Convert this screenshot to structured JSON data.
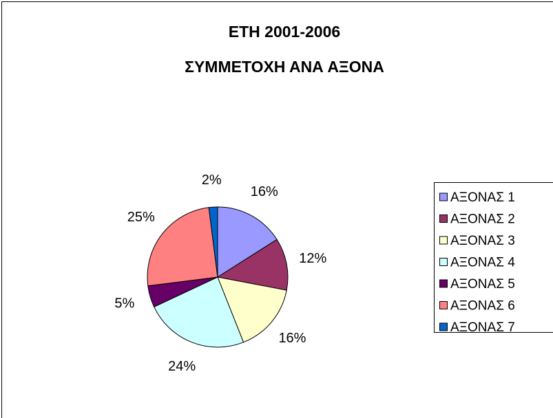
{
  "chart_data": {
    "type": "pie",
    "title": "ΕΤΗ 2001-2006",
    "subtitle": "ΣΥΜΜΕΤΟΧΗ ΑΝΑ ΑΞΟΝΑ",
    "categories": [
      "ΑΞΟΝΑΣ 1",
      "ΑΞΟΝΑΣ 2",
      "ΑΞΟΝΑΣ 3",
      "ΑΞΟΝΑΣ 4",
      "ΑΞΟΝΑΣ 5",
      "ΑΞΟΝΑΣ 6",
      "ΑΞΟΝΑΣ 7"
    ],
    "values": [
      16,
      12,
      16,
      24,
      5,
      25,
      2
    ],
    "value_labels": [
      "16%",
      "12%",
      "16%",
      "24%",
      "5%",
      "25%",
      "2%"
    ],
    "colors": [
      "#9999ff",
      "#993366",
      "#ffffcc",
      "#ccffff",
      "#660066",
      "#ff8080",
      "#0066cc"
    ],
    "legend": "right"
  }
}
